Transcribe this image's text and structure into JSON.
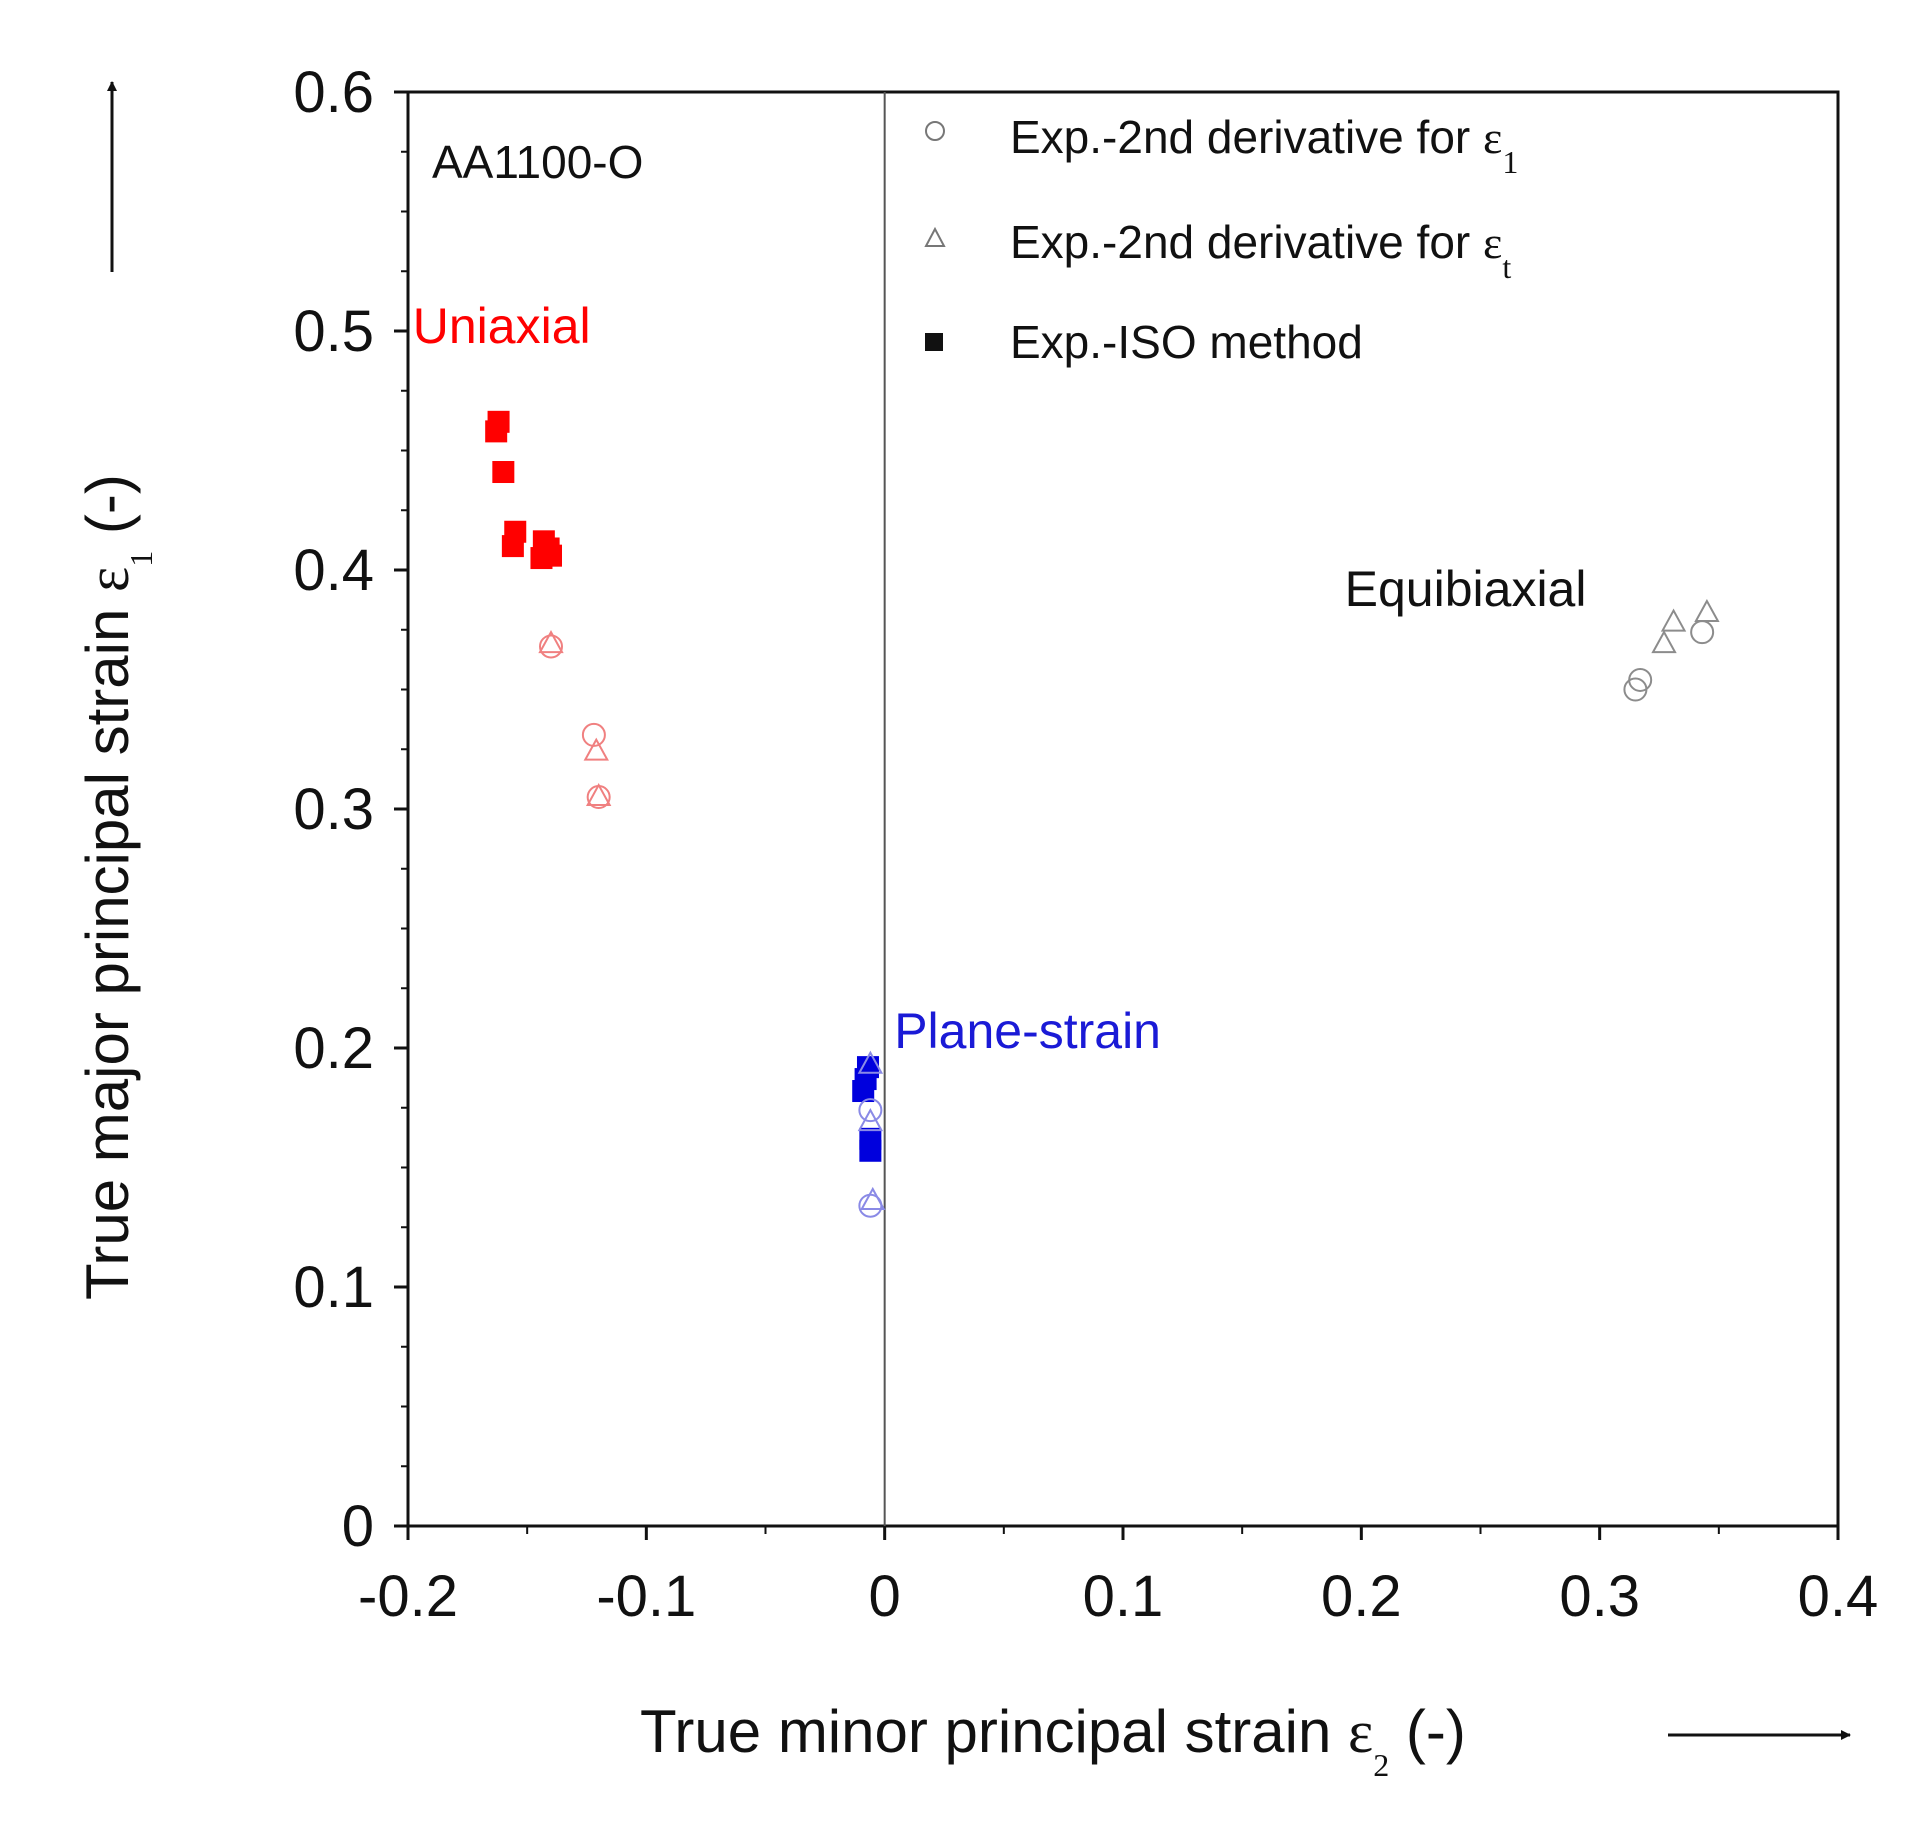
{
  "chart_data": {
    "type": "scatter",
    "panel_label": "AA1100-O",
    "xlabel": {
      "text": "True minor principal strain ",
      "symbol": "ε",
      "subscript": "2",
      "suffix": " (-)"
    },
    "ylabel": {
      "text": "True major principal strain ",
      "symbol": "ε",
      "subscript": "1",
      "suffix": " (-)"
    },
    "xlim": [
      -0.2,
      0.4
    ],
    "ylim": [
      0,
      0.6
    ],
    "x_ticks": [
      -0.2,
      -0.1,
      0,
      0.1,
      0.2,
      0.3,
      0.4
    ],
    "x_tick_labels": [
      "-0.2",
      "-0.1",
      "0",
      "0.1",
      "0.2",
      "0.3",
      "0.4"
    ],
    "y_ticks": [
      0,
      0.1,
      0.2,
      0.3,
      0.4,
      0.5,
      0.6
    ],
    "y_tick_labels": [
      "0",
      "0.1",
      "0.2",
      "0.3",
      "0.4",
      "0.5",
      "0.6"
    ],
    "grid": false,
    "reference_line_x": 0,
    "legend": {
      "placement": "top-right",
      "entries": [
        {
          "label": "Exp.-2nd derivative for ",
          "symbol": "ε",
          "subscript": "1",
          "marker": "circle-open"
        },
        {
          "label": "Exp.-2nd derivative for ",
          "symbol": "ε",
          "subscript": "t",
          "marker": "triangle-open"
        },
        {
          "label": "Exp.-ISO method",
          "symbol": "",
          "subscript": "",
          "marker": "square-filled"
        }
      ]
    },
    "annotations": [
      {
        "text": "Uniaxial",
        "x": -0.198,
        "y": 0.495,
        "color": "#ff0000"
      },
      {
        "text": "Plane-strain",
        "x": 0.004,
        "y": 0.2,
        "color": "#1a1ad6"
      },
      {
        "text": "Equibiaxial",
        "x": 0.193,
        "y": 0.385,
        "color": "#111111"
      }
    ],
    "series": [
      {
        "name": "Uniaxial - Exp.-ISO method",
        "marker": "square-filled",
        "color": "#ff0000",
        "points": [
          [
            -0.162,
            0.462
          ],
          [
            -0.163,
            0.458
          ],
          [
            -0.16,
            0.441
          ],
          [
            -0.155,
            0.416
          ],
          [
            -0.156,
            0.41
          ],
          [
            -0.143,
            0.412
          ],
          [
            -0.141,
            0.409
          ],
          [
            -0.144,
            0.405
          ],
          [
            -0.14,
            0.406
          ]
        ]
      },
      {
        "name": "Uniaxial - Exp.-2nd derivative for ε1",
        "marker": "circle-open",
        "color": "#f08080",
        "points": [
          [
            -0.14,
            0.368
          ],
          [
            -0.122,
            0.331
          ],
          [
            -0.12,
            0.305
          ]
        ]
      },
      {
        "name": "Uniaxial - Exp.-2nd derivative for εt",
        "marker": "triangle-open",
        "color": "#f08080",
        "points": [
          [
            -0.14,
            0.369
          ],
          [
            -0.121,
            0.324
          ],
          [
            -0.12,
            0.305
          ]
        ]
      },
      {
        "name": "Plane-strain - Exp.-ISO method",
        "marker": "square-filled",
        "color": "#0000dd",
        "points": [
          [
            -0.007,
            0.192
          ],
          [
            -0.008,
            0.187
          ],
          [
            -0.009,
            0.182
          ],
          [
            -0.006,
            0.162
          ],
          [
            -0.006,
            0.157
          ]
        ]
      },
      {
        "name": "Plane-strain - Exp.-2nd derivative for ε1",
        "marker": "circle-open",
        "color": "#8a8ae6",
        "points": [
          [
            -0.006,
            0.174
          ],
          [
            -0.006,
            0.134
          ]
        ]
      },
      {
        "name": "Plane-strain - Exp.-2nd derivative for εt",
        "marker": "triangle-open",
        "color": "#8a8ae6",
        "points": [
          [
            -0.006,
            0.193
          ],
          [
            -0.006,
            0.169
          ],
          [
            -0.005,
            0.136
          ]
        ]
      },
      {
        "name": "Equibiaxial - Exp.-2nd derivative for ε1",
        "marker": "circle-open",
        "color": "#8c8c8c",
        "points": [
          [
            0.315,
            0.35
          ],
          [
            0.317,
            0.354
          ],
          [
            0.343,
            0.374
          ]
        ]
      },
      {
        "name": "Equibiaxial - Exp.-2nd derivative for εt",
        "marker": "triangle-open",
        "color": "#8c8c8c",
        "points": [
          [
            0.327,
            0.369
          ],
          [
            0.331,
            0.378
          ],
          [
            0.345,
            0.382
          ]
        ]
      }
    ]
  }
}
